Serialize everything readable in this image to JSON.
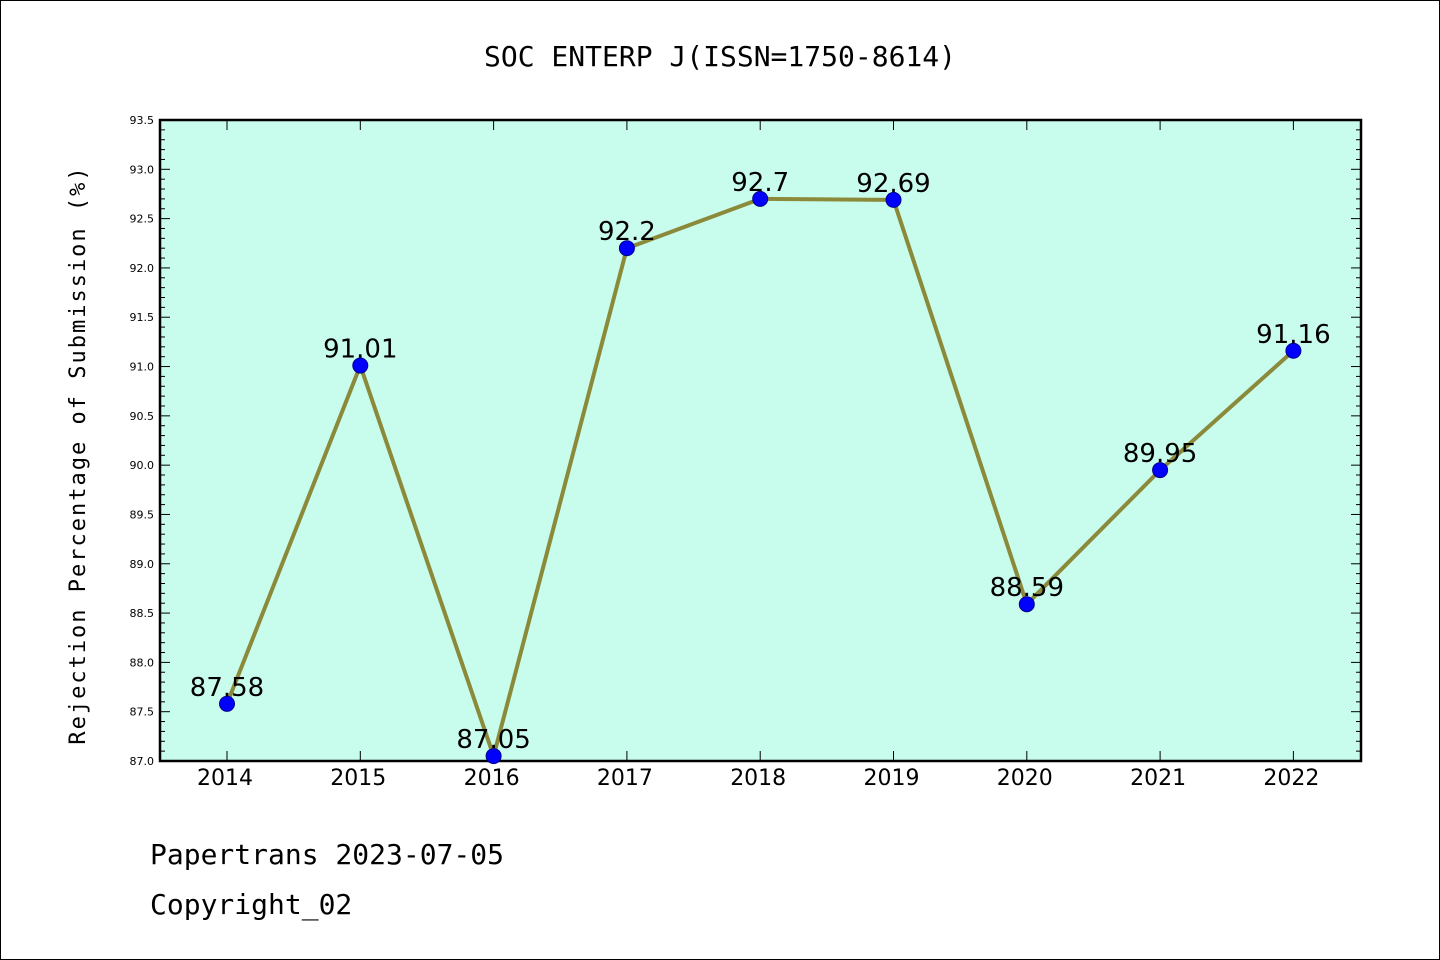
{
  "chart_data": {
    "type": "line",
    "title": "SOC ENTERP J(ISSN=1750-8614)",
    "ylabel": "Rejection Percentage of Submission (%)",
    "xlabel": "",
    "categories": [
      "2014",
      "2015",
      "2016",
      "2017",
      "2018",
      "2019",
      "2020",
      "2021",
      "2022"
    ],
    "values": [
      87.58,
      91.01,
      87.05,
      92.2,
      92.7,
      92.69,
      88.59,
      89.95,
      91.16
    ],
    "data_labels": [
      "87.58",
      "91.01",
      "87.05",
      "92.2",
      "92.7",
      "92.69",
      "88.59",
      "89.95",
      "91.16"
    ],
    "ylim": [
      87.0,
      93.5
    ],
    "yticks": [
      "87.0",
      "87.5",
      "88.0",
      "88.5",
      "89.0",
      "89.5",
      "90.0",
      "90.5",
      "91.0",
      "91.5",
      "92.0",
      "92.5",
      "93.0",
      "93.5"
    ],
    "grid": false,
    "colors": {
      "plot_background": "#c8fcec",
      "line": "#8b8a3a",
      "marker": "#0000ff"
    }
  },
  "footer": {
    "line1": "Papertrans 2023-07-05",
    "line2": "Copyright_02"
  }
}
